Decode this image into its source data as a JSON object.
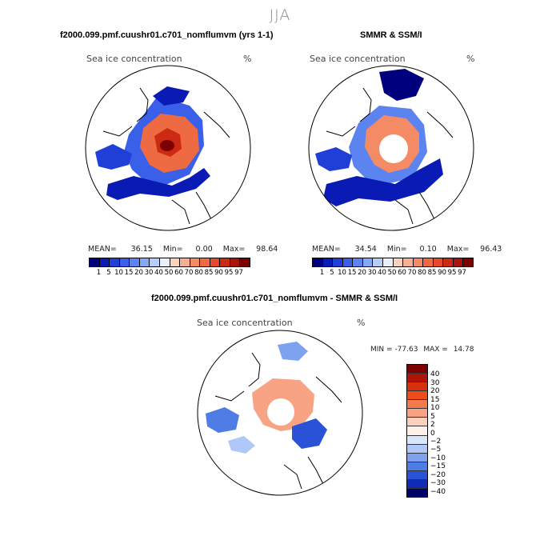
{
  "season_title": "JJA",
  "unit": "%",
  "colors": {
    "seq": [
      "#00007f",
      "#0a1ab4",
      "#1f3fd6",
      "#3a5fe8",
      "#5c84f0",
      "#86a8f6",
      "#b7cdfa",
      "#eaf0fb",
      "#fad2bc",
      "#f8b095",
      "#f48b64",
      "#ee6a42",
      "#e5482a",
      "#cd2a14",
      "#a9140a",
      "#7d0000"
    ],
    "div": [
      "#7d0000",
      "#b01408",
      "#d8300c",
      "#ec4d1a",
      "#f47a4c",
      "#f8a484",
      "#fcd0bc",
      "#fdf0e8",
      "#d9e6fb",
      "#afc8f7",
      "#7ea2ef",
      "#4f7de6",
      "#2952d6",
      "#0e2cb8",
      "#00006a"
    ]
  },
  "panel_model": {
    "title": "f2000.099.pmf.cuushr01.c701_nomflumvm (yrs 1-1)",
    "variable": "Sea ice concentration",
    "mean_label": "MEAN=",
    "mean": "36.15",
    "min_label": "Min=",
    "min": "0.00",
    "max_label": "Max=",
    "max": "98.64"
  },
  "panel_obs": {
    "title": "SMMR & SSM/I",
    "variable": "Sea ice concentration",
    "mean_label": "MEAN=",
    "mean": "34.54",
    "min_label": "Min=",
    "min": "0.10",
    "max_label": "Max=",
    "max": "96.43"
  },
  "panel_diff": {
    "title": "f2000.099.pmf.cuushr01.c701_nomflumvm - SMMR & SSM/I",
    "variable": "Sea ice concentration",
    "min_label": "MIN =",
    "min": "-77.63",
    "max_label": "MAX =",
    "max": "14.78"
  },
  "conc_ticks": [
    "1",
    "5",
    "10",
    "15",
    "20",
    "30",
    "40",
    "50",
    "60",
    "70",
    "80",
    "85",
    "90",
    "95",
    "97"
  ],
  "diff_ticks": [
    "40",
    "30",
    "20",
    "15",
    "10",
    "5",
    "2",
    "0",
    "−2",
    "−5",
    "−10",
    "−15",
    "−20",
    "−30",
    "−40"
  ]
}
